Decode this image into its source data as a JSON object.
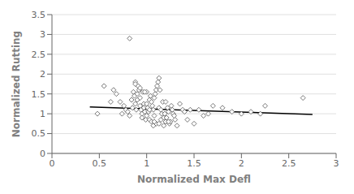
{
  "chart_data": {
    "type": "scatter",
    "xlabel": "Normalized Max Defl",
    "ylabel": "Normalized Rutting",
    "xlim": [
      0,
      3
    ],
    "ylim": [
      0,
      3.5
    ],
    "xticks": [
      0,
      0.5,
      1,
      1.5,
      2,
      2.5,
      3
    ],
    "yticks": [
      0,
      0.5,
      1,
      1.5,
      2,
      2.5,
      3,
      3.5
    ],
    "grid": true,
    "series": [
      {
        "type": "scatter",
        "marker": "diamond",
        "color": "#555555",
        "x": [
          0.48,
          0.55,
          0.62,
          0.65,
          0.68,
          0.72,
          0.74,
          0.76,
          0.78,
          0.8,
          0.82,
          0.84,
          0.85,
          0.86,
          0.87,
          0.88,
          0.88,
          0.89,
          0.9,
          0.9,
          0.91,
          0.92,
          0.93,
          0.93,
          0.94,
          0.95,
          0.95,
          0.96,
          0.97,
          0.97,
          0.98,
          0.99,
          1.0,
          1.0,
          1.0,
          1.01,
          1.02,
          1.03,
          1.03,
          1.04,
          1.05,
          1.05,
          1.06,
          1.07,
          1.07,
          1.08,
          1.08,
          1.09,
          1.1,
          1.1,
          1.11,
          1.12,
          1.13,
          1.13,
          1.14,
          1.15,
          1.15,
          1.16,
          1.17,
          1.18,
          1.19,
          1.2,
          1.2,
          1.21,
          1.22,
          1.23,
          1.24,
          1.25,
          1.26,
          1.27,
          1.28,
          1.29,
          1.3,
          1.32,
          1.35,
          1.38,
          1.4,
          1.43,
          1.46,
          1.5,
          1.55,
          1.6,
          1.65,
          1.7,
          1.8,
          1.9,
          2.0,
          2.1,
          2.2,
          2.25,
          2.65,
          0.82,
          0.88,
          0.93,
          0.98,
          1.03,
          1.08,
          1.13,
          1.18,
          1.23
        ],
        "values": [
          1.0,
          1.7,
          1.3,
          1.6,
          1.5,
          1.3,
          1.0,
          1.2,
          1.1,
          1.05,
          0.95,
          1.35,
          1.15,
          1.55,
          1.45,
          1.8,
          1.25,
          1.1,
          1.35,
          1.5,
          1.7,
          1.6,
          1.2,
          1.4,
          1.1,
          1.0,
          0.9,
          1.55,
          1.25,
          1.15,
          1.05,
          0.85,
          1.55,
          1.25,
          0.95,
          1.15,
          1.05,
          1.35,
          0.85,
          1.45,
          1.3,
          0.8,
          1.2,
          1.1,
          0.7,
          0.95,
          1.4,
          1.5,
          1.6,
          0.75,
          1.7,
          1.8,
          1.9,
          1.15,
          1.6,
          1.1,
          0.85,
          1.0,
          1.3,
          0.9,
          1.0,
          1.3,
          0.8,
          0.9,
          1.15,
          1.05,
          0.75,
          0.8,
          1.2,
          1.1,
          1.0,
          0.95,
          0.85,
          0.7,
          1.25,
          1.1,
          1.05,
          0.85,
          1.1,
          0.75,
          1.1,
          0.95,
          1.0,
          1.2,
          1.15,
          1.05,
          1.0,
          1.05,
          1.0,
          1.2,
          1.4,
          2.9,
          1.75,
          1.65,
          1.55,
          1.1,
          0.8,
          0.75,
          0.7,
          0.8
        ]
      },
      {
        "type": "line",
        "color": "#000000",
        "x": [
          0.4,
          2.75
        ],
        "values": [
          1.17,
          0.98
        ]
      }
    ]
  }
}
